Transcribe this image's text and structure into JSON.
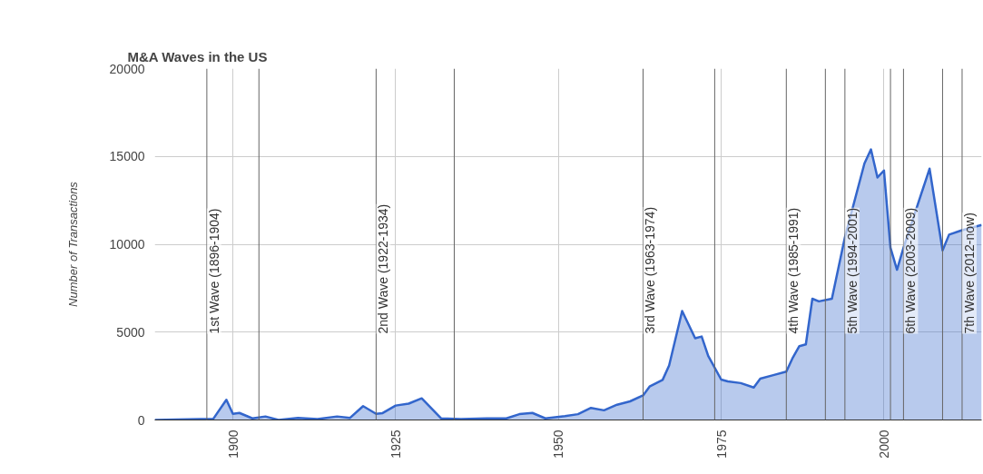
{
  "chart_data": {
    "type": "area",
    "title": "M&A Waves in the US",
    "ylabel": "Number of Transactions",
    "x": [
      1888,
      1895,
      1897,
      1899,
      1900,
      1901,
      1903,
      1905,
      1907,
      1910,
      1913,
      1916,
      1918,
      1920,
      1922,
      1923,
      1925,
      1927,
      1929,
      1932,
      1935,
      1939,
      1942,
      1944,
      1946,
      1948,
      1951,
      1953,
      1955,
      1957,
      1959,
      1961,
      1963,
      1964,
      1966,
      1967,
      1969,
      1971,
      1972,
      1973,
      1975,
      1976,
      1978,
      1980,
      1981,
      1983,
      1985,
      1986,
      1987,
      1988,
      1989,
      1990,
      1992,
      1994,
      1997,
      1998,
      1999,
      2000,
      2001,
      2002,
      2003,
      2007,
      2009,
      2010,
      2012,
      2015
    ],
    "series": [
      {
        "color": "#3366cc",
        "values": [
          0,
          50,
          70,
          1150,
          350,
          400,
          90,
          200,
          0,
          120,
          50,
          200,
          120,
          790,
          350,
          390,
          820,
          930,
          1230,
          90,
          50,
          90,
          90,
          330,
          400,
          90,
          220,
          330,
          690,
          550,
          870,
          1060,
          1400,
          1900,
          2280,
          3100,
          6200,
          4650,
          4750,
          3650,
          2300,
          2200,
          2100,
          1850,
          2350,
          2550,
          2750,
          3550,
          4200,
          4300,
          6900,
          6750,
          6900,
          10400,
          14600,
          15400,
          13800,
          14200,
          9800,
          8550,
          9800,
          14300,
          9650,
          10550,
          10800,
          11100
        ]
      }
    ],
    "xlim": [
      1888,
      2015
    ],
    "xticks": [
      1900,
      1925,
      1950,
      1975,
      2000
    ],
    "ylim": [
      0,
      20000
    ],
    "yticks": [
      0,
      5000,
      10000,
      15000,
      20000
    ],
    "grid": true,
    "ref_lines": [
      {
        "axis": "x",
        "value": 1896,
        "label": "1st Wave (1896-1904)",
        "color": "#666666"
      },
      {
        "axis": "x",
        "value": 1904,
        "color": "#666666"
      },
      {
        "axis": "x",
        "value": 1922,
        "label": "2nd Wave (1922-1934)",
        "color": "#666666"
      },
      {
        "axis": "x",
        "value": 1934,
        "color": "#666666"
      },
      {
        "axis": "x",
        "value": 1963,
        "label": "3rd Wave (1963-1974)",
        "color": "#666666"
      },
      {
        "axis": "x",
        "value": 1974,
        "color": "#666666"
      },
      {
        "axis": "x",
        "value": 1985,
        "label": "4th Wave (1985-1991)",
        "color": "#666666"
      },
      {
        "axis": "x",
        "value": 1991,
        "color": "#666666"
      },
      {
        "axis": "x",
        "value": 1994,
        "label": "5th Wave (1994-2001)",
        "color": "#666666"
      },
      {
        "axis": "x",
        "value": 2001,
        "color": "#666666"
      },
      {
        "axis": "x",
        "value": 2003,
        "label": "6th Wave (2003-2009)",
        "color": "#666666"
      },
      {
        "axis": "x",
        "value": 2009,
        "color": "#666666"
      },
      {
        "axis": "x",
        "value": 2012,
        "label": "7th Wave (2012-now)",
        "color": "#666666"
      }
    ]
  }
}
